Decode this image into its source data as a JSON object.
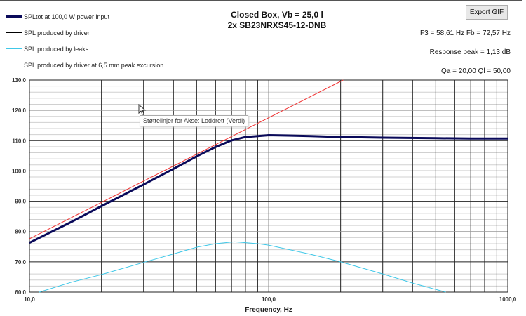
{
  "toolbar": {
    "export_label": "Export GIF"
  },
  "info": {
    "f3_fb": "F3 = 58,61 Hz  Fb = 72,57 Hz",
    "peak": "Response peak = 1,13 dB",
    "q": "Qa = 20,00  Ql = 50,00"
  },
  "tooltip": "Støttelinjer for Akse: Loddrett (Verdi)",
  "colors": {
    "spltot": "#0a0a5a",
    "driver": "#000000",
    "leaks": "#40c8e8",
    "excursion": "#f03030"
  },
  "chart_data": {
    "type": "line",
    "title": "Closed Box, Vb = 25,0 l",
    "subtitle": "2x SB23NRXS45-12-DNB",
    "xlabel": "Frequency, Hz",
    "ylabel": "",
    "xscale": "log",
    "xlim": [
      10,
      1000
    ],
    "ylim": [
      60,
      130
    ],
    "grid": true,
    "legend": "top-left",
    "xticks": [
      "10,0",
      "100,0",
      "1000,0"
    ],
    "yticks": [
      "60,0",
      "70,0",
      "80,0",
      "90,0",
      "100,0",
      "110,0",
      "120,0",
      "130,0"
    ],
    "series": [
      {
        "name": "SPLtot at 100,0 W power input",
        "color": "#0a0a5a",
        "x": [
          10,
          15,
          20,
          30,
          40,
          50,
          60,
          70,
          80,
          100,
          120,
          150,
          200,
          300,
          500,
          700,
          1000
        ],
        "y": [
          76.3,
          83.2,
          88.4,
          95.5,
          100.7,
          104.8,
          107.9,
          110.1,
          111.2,
          111.8,
          111.7,
          111.5,
          111.2,
          111.0,
          110.8,
          110.7,
          110.7
        ]
      },
      {
        "name": "SPL produced by driver",
        "color": "#000000",
        "x": [
          10,
          15,
          20,
          30,
          40,
          50,
          60,
          70,
          80,
          100,
          120,
          150,
          200,
          300,
          500,
          700,
          1000
        ],
        "y": [
          76.3,
          83.2,
          88.4,
          95.5,
          100.7,
          104.8,
          107.9,
          110.1,
          111.2,
          111.8,
          111.7,
          111.5,
          111.2,
          111.0,
          110.8,
          110.7,
          110.7
        ]
      },
      {
        "name": "SPL produced by leaks",
        "color": "#40c8e8",
        "x": [
          11,
          15,
          20,
          30,
          40,
          50,
          60,
          72,
          90,
          100,
          150,
          200,
          300,
          400,
          550
        ],
        "y": [
          60,
          63.3,
          65.8,
          69.8,
          72.6,
          74.8,
          76.0,
          76.6,
          76.0,
          75.5,
          72.5,
          70.0,
          66.0,
          63.0,
          60
        ]
      },
      {
        "name": "SPL produced by driver at 6,5 mm peak excursion",
        "color": "#f03030",
        "x": [
          10,
          205
        ],
        "y": [
          77.6,
          130
        ]
      }
    ]
  }
}
